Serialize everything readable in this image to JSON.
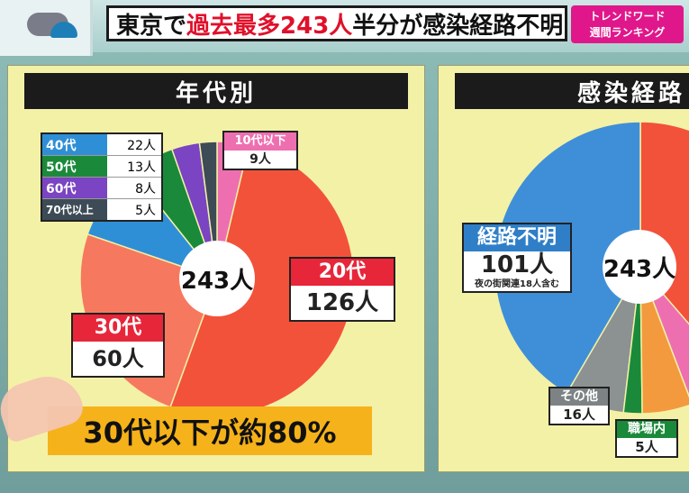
{
  "headline": {
    "pre": "東京で",
    "red": "過去最多243人",
    "post": " 半分が感染経路不明"
  },
  "trend_badge": [
    "トレンドワード",
    "週間ランキング"
  ],
  "colors": {
    "20s": "#f2523a",
    "30s": "#f6795f",
    "40s": "#2f8fd6",
    "50s": "#1a8a3a",
    "60s": "#7a44c2",
    "70s": "#3d4b56",
    "10s": "#ee6fb0",
    "unknown": "#3f8fd8",
    "other": "#8c9192",
    "work": "#1a8a3a"
  },
  "left_panel": {
    "title": "年代別",
    "center": "243人",
    "legend": [
      {
        "label": "40代",
        "value": "22人"
      },
      {
        "label": "50代",
        "value": "13人"
      },
      {
        "label": "60代",
        "value": "8人"
      },
      {
        "label": "70代以上",
        "value": "5人"
      }
    ],
    "tag_10s": {
      "label": "10代以下",
      "value": "9人"
    },
    "tag_20s": {
      "label": "20代",
      "value": "126人"
    },
    "tag_30s": {
      "label": "30代",
      "value": "60人"
    },
    "summary": "30代以下が約80%"
  },
  "right_panel": {
    "title": "感染経路",
    "center": "243人",
    "tag_unknown": {
      "label": "経路不明",
      "value": "101人",
      "note": "夜の街関連18人含む"
    },
    "tag_other": {
      "label": "その他",
      "value": "16人"
    },
    "tag_work": {
      "label": "職場内",
      "value": "5人"
    }
  },
  "chart_data": [
    {
      "type": "pie",
      "title": "年代別",
      "categories": [
        "10代以下",
        "20代",
        "30代",
        "40代",
        "50代",
        "60代",
        "70代以上"
      ],
      "values": [
        9,
        126,
        60,
        22,
        13,
        8,
        5
      ],
      "unit": "人",
      "total": 243,
      "annotation": "30代以下が約80%"
    },
    {
      "type": "pie",
      "title": "感染経路",
      "categories": [
        "経路不明",
        "その他",
        "職場内"
      ],
      "values": [
        101,
        16,
        5
      ],
      "unit": "人",
      "total": 243
    }
  ]
}
